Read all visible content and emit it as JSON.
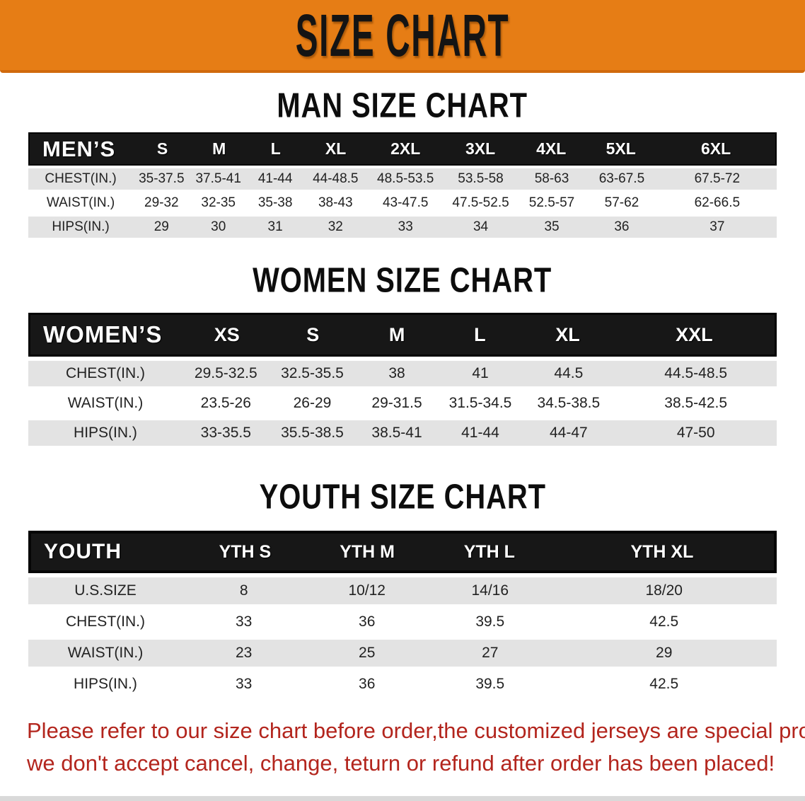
{
  "banner": {
    "title": "SIZE CHART"
  },
  "sections": [
    {
      "heading": "MAN SIZE CHART",
      "table": {
        "header_label": "MEN’S",
        "columns": [
          "S",
          "M",
          "L",
          "XL",
          "2XL",
          "3XL",
          "4XL",
          "5XL",
          "6XL"
        ],
        "rows": [
          {
            "label": "CHEST(IN.)",
            "values": [
              "35-37.5",
              "37.5-41",
              "41-44",
              "44-48.5",
              "48.5-53.5",
              "53.5-58",
              "58-63",
              "63-67.5",
              "67.5-72"
            ]
          },
          {
            "label": "WAIST(IN.)",
            "values": [
              "29-32",
              "32-35",
              "35-38",
              "38-43",
              "43-47.5",
              "47.5-52.5",
              "52.5-57",
              "57-62",
              "62-66.5"
            ]
          },
          {
            "label": "HIPS(IN.)",
            "values": [
              "29",
              "30",
              "31",
              "32",
              "33",
              "34",
              "35",
              "36",
              "37"
            ]
          }
        ]
      }
    },
    {
      "heading": "WOMEN SIZE CHART",
      "table": {
        "header_label": "WOMEN’S",
        "columns": [
          "XS",
          "S",
          "M",
          "L",
          "XL",
          "XXL"
        ],
        "rows": [
          {
            "label": "CHEST(IN.)",
            "values": [
              "29.5-32.5",
              "32.5-35.5",
              "38",
              "41",
              "44.5",
              "44.5-48.5"
            ]
          },
          {
            "label": "WAIST(IN.)",
            "values": [
              "23.5-26",
              "26-29",
              "29-31.5",
              "31.5-34.5",
              "34.5-38.5",
              "38.5-42.5"
            ]
          },
          {
            "label": "HIPS(IN.)",
            "values": [
              "33-35.5",
              "35.5-38.5",
              "38.5-41",
              "41-44",
              "44-47",
              "47-50"
            ]
          }
        ]
      }
    },
    {
      "heading": "YOUTH SIZE CHART",
      "table": {
        "header_label": "YOUTH",
        "columns": [
          "YTH S",
          "YTH M",
          "YTH L",
          "YTH XL"
        ],
        "rows": [
          {
            "label": "U.S.SIZE",
            "values": [
              "8",
              "10/12",
              "14/16",
              "18/20"
            ]
          },
          {
            "label": "CHEST(IN.)",
            "values": [
              "33",
              "36",
              "39.5",
              "42.5"
            ]
          },
          {
            "label": "WAIST(IN.)",
            "values": [
              "23",
              "25",
              "27",
              "29"
            ]
          },
          {
            "label": "HIPS(IN.)",
            "values": [
              "33",
              "36",
              "39.5",
              "42.5"
            ]
          }
        ]
      }
    }
  ],
  "footer": {
    "line1": "Please refer to our size chart before order,the customized jerseys are special products,",
    "line2": "we don't accept cancel, change, teturn or refund after order has been placed!"
  },
  "colors": {
    "banner_bg": "#e67d15",
    "banner_edge": "#d06a0d",
    "table_header_bg": "#171717",
    "row_stripe": "#e3e3e3",
    "footer_text": "#b3251d",
    "heading_text": "#0d0d0d"
  }
}
